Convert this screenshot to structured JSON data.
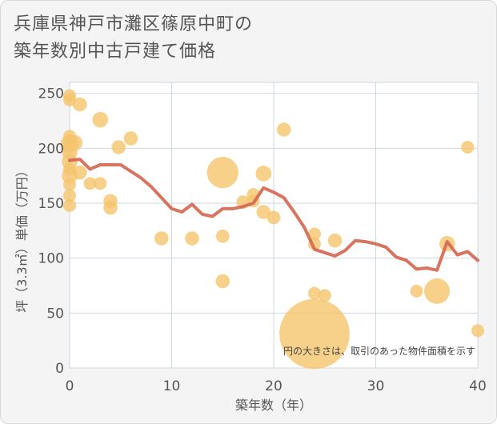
{
  "chart_data": {
    "type": "scatter",
    "title_lines": [
      "兵庫県神戸市灘区篠原中町の",
      "築年数別中古戸建て価格"
    ],
    "xlabel": "築年数（年）",
    "ylabel": "坪（3.3㎡）単価（万円）",
    "xlim": [
      0,
      40
    ],
    "ylim": [
      0,
      260
    ],
    "x_ticks": [
      0,
      10,
      20,
      30,
      40
    ],
    "y_ticks": [
      0,
      50,
      100,
      150,
      200,
      250
    ],
    "grid": true,
    "note": "円の大きさは、取引のあった物件面積を示す",
    "colors": {
      "bubble": "#f5c46d",
      "line": "#d4654f",
      "plot_bg": "#ffffff",
      "grid": "#cfd8e3"
    },
    "bubbles": [
      {
        "x": 0,
        "y": 248,
        "size": 1
      },
      {
        "x": 0,
        "y": 244,
        "size": 1
      },
      {
        "x": 0,
        "y": 211,
        "size": 1
      },
      {
        "x": 0,
        "y": 207,
        "size": 1
      },
      {
        "x": 0,
        "y": 204,
        "size": 2
      },
      {
        "x": 0,
        "y": 197,
        "size": 1.5
      },
      {
        "x": 0,
        "y": 188,
        "size": 1.5
      },
      {
        "x": 0,
        "y": 181,
        "size": 1
      },
      {
        "x": 0,
        "y": 175,
        "size": 1.5
      },
      {
        "x": 0,
        "y": 167,
        "size": 1
      },
      {
        "x": 0,
        "y": 157,
        "size": 1
      },
      {
        "x": 0,
        "y": 148,
        "size": 1
      },
      {
        "x": 0.5,
        "y": 205,
        "size": 1.5
      },
      {
        "x": 1,
        "y": 240,
        "size": 1.2
      },
      {
        "x": 1,
        "y": 178,
        "size": 1.2
      },
      {
        "x": 2,
        "y": 168,
        "size": 1
      },
      {
        "x": 3,
        "y": 226,
        "size": 1.5
      },
      {
        "x": 3,
        "y": 168,
        "size": 1
      },
      {
        "x": 4,
        "y": 152,
        "size": 1.2
      },
      {
        "x": 4,
        "y": 146,
        "size": 1.2
      },
      {
        "x": 4.8,
        "y": 201,
        "size": 1.2
      },
      {
        "x": 6,
        "y": 209,
        "size": 1.2
      },
      {
        "x": 9,
        "y": 118,
        "size": 1.2
      },
      {
        "x": 12,
        "y": 118,
        "size": 1.2
      },
      {
        "x": 15,
        "y": 178,
        "size": 6
      },
      {
        "x": 15,
        "y": 120,
        "size": 1.1
      },
      {
        "x": 15,
        "y": 79,
        "size": 1.2
      },
      {
        "x": 17,
        "y": 151,
        "size": 1.1
      },
      {
        "x": 18,
        "y": 158,
        "size": 1
      },
      {
        "x": 18,
        "y": 152,
        "size": 1
      },
      {
        "x": 19,
        "y": 177,
        "size": 1.5
      },
      {
        "x": 19,
        "y": 142,
        "size": 1.2
      },
      {
        "x": 20,
        "y": 137,
        "size": 1.1
      },
      {
        "x": 21,
        "y": 217,
        "size": 1.2
      },
      {
        "x": 24,
        "y": 31,
        "size": 30
      },
      {
        "x": 24,
        "y": 122,
        "size": 1
      },
      {
        "x": 24,
        "y": 113,
        "size": 1
      },
      {
        "x": 24,
        "y": 68,
        "size": 1
      },
      {
        "x": 25,
        "y": 66,
        "size": 1
      },
      {
        "x": 26,
        "y": 116,
        "size": 1.2
      },
      {
        "x": 34,
        "y": 70,
        "size": 1
      },
      {
        "x": 36,
        "y": 70,
        "size": 4
      },
      {
        "x": 37,
        "y": 113,
        "size": 1.5
      },
      {
        "x": 39,
        "y": 201,
        "size": 1
      },
      {
        "x": 40,
        "y": 34,
        "size": 1
      }
    ],
    "average_line": {
      "x": [
        0,
        1,
        2,
        3,
        4,
        5,
        6,
        7,
        8,
        9,
        10,
        11,
        12,
        13,
        14,
        15,
        16,
        17,
        18,
        19,
        20,
        21,
        22,
        23,
        24,
        25,
        26,
        27,
        28,
        29,
        30,
        31,
        32,
        33,
        34,
        35,
        36,
        37,
        38,
        39,
        40
      ],
      "y": [
        189,
        190,
        181,
        185,
        185,
        185,
        179,
        173,
        165,
        155,
        145,
        142,
        149,
        140,
        138,
        145,
        145,
        147,
        150,
        164,
        160,
        155,
        142,
        128,
        108,
        105,
        102,
        107,
        116,
        115,
        113,
        110,
        101,
        98,
        90,
        91,
        89,
        115,
        103,
        106,
        98
      ]
    }
  }
}
